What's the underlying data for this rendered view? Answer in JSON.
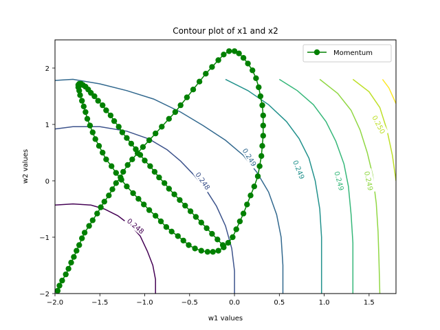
{
  "chart_data": {
    "type": "line",
    "title": "Contour plot of x1 and x2",
    "xlabel": "w1 values",
    "ylabel": "w2 values",
    "xlim": [
      -2.0,
      1.8
    ],
    "ylim": [
      -2.0,
      2.5
    ],
    "xticks": [
      {
        "value": -2.0,
        "label": "−2.0"
      },
      {
        "value": -1.5,
        "label": "−1.5"
      },
      {
        "value": -1.0,
        "label": "−1.0"
      },
      {
        "value": -0.5,
        "label": "−0.5"
      },
      {
        "value": 0.0,
        "label": "0.0"
      },
      {
        "value": 0.5,
        "label": "0.5"
      },
      {
        "value": 1.0,
        "label": "1.0"
      },
      {
        "value": 1.5,
        "label": "1.5"
      }
    ],
    "yticks": [
      {
        "value": -2,
        "label": "−2"
      },
      {
        "value": -1,
        "label": "−1"
      },
      {
        "value": 0,
        "label": "0"
      },
      {
        "value": 1,
        "label": "1"
      },
      {
        "value": 2,
        "label": "2"
      }
    ],
    "grid": false,
    "legend": {
      "placement": "top-right",
      "entries": [
        "Momentum"
      ]
    },
    "contours": [
      {
        "color": "#440154",
        "label": "0.248",
        "label_at": [
          -1.1,
          -0.8
        ],
        "label_angle": 40,
        "points": [
          [
            -2.0,
            -0.43
          ],
          [
            -1.8,
            -0.41
          ],
          [
            -1.6,
            -0.43
          ],
          [
            -1.45,
            -0.5
          ],
          [
            -1.3,
            -0.62
          ],
          [
            -1.15,
            -0.8
          ],
          [
            -1.05,
            -0.98
          ],
          [
            -0.97,
            -1.25
          ],
          [
            -0.91,
            -1.5
          ],
          [
            -0.88,
            -1.75
          ],
          [
            -0.88,
            -2.0
          ]
        ]
      },
      {
        "color": "#3b528b",
        "label": "0.248",
        "label_at": [
          -0.35,
          0.0
        ],
        "label_angle": 55,
        "points": [
          [
            -2.0,
            0.92
          ],
          [
            -1.8,
            0.96
          ],
          [
            -1.5,
            0.96
          ],
          [
            -1.2,
            0.88
          ],
          [
            -0.95,
            0.74
          ],
          [
            -0.75,
            0.55
          ],
          [
            -0.6,
            0.35
          ],
          [
            -0.45,
            0.1
          ],
          [
            -0.32,
            -0.15
          ],
          [
            -0.2,
            -0.45
          ],
          [
            -0.1,
            -0.8
          ],
          [
            -0.03,
            -1.2
          ],
          [
            0.0,
            -1.6
          ],
          [
            0.0,
            -2.0
          ]
        ]
      },
      {
        "color": "#31688e",
        "label": "0.249",
        "label_at": [
          0.17,
          0.42
        ],
        "label_angle": 58,
        "points": [
          [
            -2.0,
            1.78
          ],
          [
            -1.8,
            1.8
          ],
          [
            -1.5,
            1.72
          ],
          [
            -1.2,
            1.6
          ],
          [
            -0.9,
            1.45
          ],
          [
            -0.6,
            1.22
          ],
          [
            -0.35,
            0.98
          ],
          [
            -0.1,
            0.72
          ],
          [
            0.1,
            0.45
          ],
          [
            0.25,
            0.15
          ],
          [
            0.38,
            -0.2
          ],
          [
            0.47,
            -0.6
          ],
          [
            0.52,
            -1.0
          ],
          [
            0.54,
            -1.5
          ],
          [
            0.54,
            -2.0
          ]
        ]
      },
      {
        "color": "#21918c",
        "label": "0.249",
        "label_at": [
          0.72,
          0.2
        ],
        "label_angle": 68,
        "points": [
          [
            -0.1,
            1.8
          ],
          [
            0.15,
            1.6
          ],
          [
            0.38,
            1.35
          ],
          [
            0.58,
            1.05
          ],
          [
            0.72,
            0.75
          ],
          [
            0.83,
            0.4
          ],
          [
            0.9,
            0.0
          ],
          [
            0.95,
            -0.5
          ],
          [
            0.97,
            -1.0
          ],
          [
            0.97,
            -1.5
          ],
          [
            0.97,
            -2.0
          ]
        ]
      },
      {
        "color": "#35b779",
        "label": "0.249",
        "label_at": [
          1.17,
          0.0
        ],
        "label_angle": 75,
        "points": [
          [
            0.5,
            1.8
          ],
          [
            0.7,
            1.6
          ],
          [
            0.88,
            1.35
          ],
          [
            1.02,
            1.05
          ],
          [
            1.13,
            0.7
          ],
          [
            1.22,
            0.3
          ],
          [
            1.27,
            -0.1
          ],
          [
            1.3,
            -0.6
          ],
          [
            1.32,
            -1.1
          ],
          [
            1.32,
            -1.6
          ],
          [
            1.32,
            -2.0
          ]
        ]
      },
      {
        "color": "#90d743",
        "label": "0.249",
        "label_at": [
          1.5,
          0.0
        ],
        "label_angle": 78,
        "points": [
          [
            0.95,
            1.8
          ],
          [
            1.15,
            1.55
          ],
          [
            1.3,
            1.25
          ],
          [
            1.4,
            0.9
          ],
          [
            1.48,
            0.5
          ],
          [
            1.54,
            0.1
          ],
          [
            1.58,
            -0.4
          ],
          [
            1.6,
            -0.9
          ],
          [
            1.61,
            -1.4
          ],
          [
            1.62,
            -2.0
          ]
        ]
      },
      {
        "color": "#bddf26",
        "label": "0.250",
        "label_at": [
          1.61,
          1.0
        ],
        "label_angle": 62,
        "points": [
          [
            1.32,
            1.8
          ],
          [
            1.5,
            1.58
          ],
          [
            1.62,
            1.3
          ],
          [
            1.7,
            0.9
          ],
          [
            1.76,
            0.45
          ],
          [
            1.8,
            0.0
          ]
        ]
      },
      {
        "color": "#fde725",
        "label": "",
        "label_at": null,
        "label_angle": 0,
        "points": [
          [
            1.65,
            1.8
          ],
          [
            1.72,
            1.65
          ],
          [
            1.8,
            1.37
          ]
        ]
      }
    ],
    "series": [
      {
        "name": "Momentum",
        "color": "#008000",
        "x": [
          -1.97,
          -1.95,
          -1.92,
          -1.88,
          -1.85,
          -1.82,
          -1.79,
          -1.76,
          -1.73,
          -1.7,
          -1.67,
          -1.62,
          -1.58,
          -1.53,
          -1.49,
          -1.45,
          -1.4,
          -1.36,
          -1.32,
          -1.27,
          -1.24,
          -1.19,
          -1.14,
          -1.08,
          -1.02,
          -0.95,
          -0.88,
          -0.81,
          -0.73,
          -0.66,
          -0.6,
          -0.53,
          -0.46,
          -0.39,
          -0.32,
          -0.25,
          -0.18,
          -0.12,
          -0.06,
          0.0,
          0.05,
          0.1,
          0.15,
          0.2,
          0.24,
          0.27,
          0.29,
          0.31,
          0.32,
          0.32,
          0.32,
          0.31,
          0.3,
          0.28,
          0.26,
          0.22,
          0.18,
          0.14,
          0.1,
          0.06,
          0.02,
          -0.02,
          -0.07,
          -0.12,
          -0.18,
          -0.24,
          -0.3,
          -0.37,
          -0.44,
          -0.51,
          -0.57,
          -0.63,
          -0.7,
          -0.76,
          -0.82,
          -0.88,
          -0.95,
          -1.01,
          -1.07,
          -1.13,
          -1.2,
          -1.26,
          -1.32,
          -1.37,
          -1.43,
          -1.47,
          -1.51,
          -1.55,
          -1.58,
          -1.61,
          -1.64,
          -1.66,
          -1.68,
          -1.7,
          -1.72,
          -1.73,
          -1.74,
          -1.74,
          -1.73,
          -1.71,
          -1.69,
          -1.66,
          -1.63,
          -1.6,
          -1.56,
          -1.52,
          -1.47,
          -1.43,
          -1.38,
          -1.34,
          -1.29,
          -1.25,
          -1.2,
          -1.15,
          -1.1,
          -1.05,
          -1.0,
          -0.94,
          -0.89,
          -0.84,
          -0.78,
          -0.73,
          -0.67,
          -0.61,
          -0.55,
          -0.49,
          -0.43,
          -0.37,
          -0.31,
          -0.25,
          -0.19,
          -0.13
        ],
        "y": [
          -1.95,
          -1.86,
          -1.77,
          -1.66,
          -1.56,
          -1.45,
          -1.35,
          -1.24,
          -1.14,
          -1.02,
          -0.92,
          -0.8,
          -0.7,
          -0.58,
          -0.47,
          -0.37,
          -0.26,
          -0.15,
          -0.04,
          0.06,
          0.16,
          0.28,
          0.38,
          0.49,
          0.6,
          0.72,
          0.84,
          0.96,
          1.1,
          1.22,
          1.34,
          1.48,
          1.62,
          1.76,
          1.9,
          2.02,
          2.14,
          2.24,
          2.3,
          2.3,
          2.26,
          2.18,
          2.08,
          1.96,
          1.82,
          1.66,
          1.5,
          1.34,
          1.16,
          0.98,
          0.8,
          0.62,
          0.44,
          0.26,
          0.08,
          -0.1,
          -0.26,
          -0.42,
          -0.58,
          -0.72,
          -0.86,
          -1.0,
          -1.1,
          -1.18,
          -1.24,
          -1.26,
          -1.26,
          -1.24,
          -1.2,
          -1.14,
          -1.06,
          -0.98,
          -0.9,
          -0.82,
          -0.72,
          -0.62,
          -0.52,
          -0.42,
          -0.32,
          -0.22,
          -0.1,
          0.02,
          0.14,
          0.26,
          0.38,
          0.5,
          0.62,
          0.74,
          0.86,
          0.98,
          1.1,
          1.22,
          1.32,
          1.42,
          1.52,
          1.6,
          1.66,
          1.7,
          1.72,
          1.72,
          1.7,
          1.67,
          1.62,
          1.56,
          1.5,
          1.42,
          1.34,
          1.25,
          1.16,
          1.06,
          0.96,
          0.86,
          0.76,
          0.66,
          0.56,
          0.46,
          0.36,
          0.26,
          0.16,
          0.06,
          -0.04,
          -0.14,
          -0.24,
          -0.34,
          -0.44,
          -0.54,
          -0.64,
          -0.74,
          -0.84,
          -0.94,
          -1.04,
          -1.14
        ]
      }
    ]
  }
}
